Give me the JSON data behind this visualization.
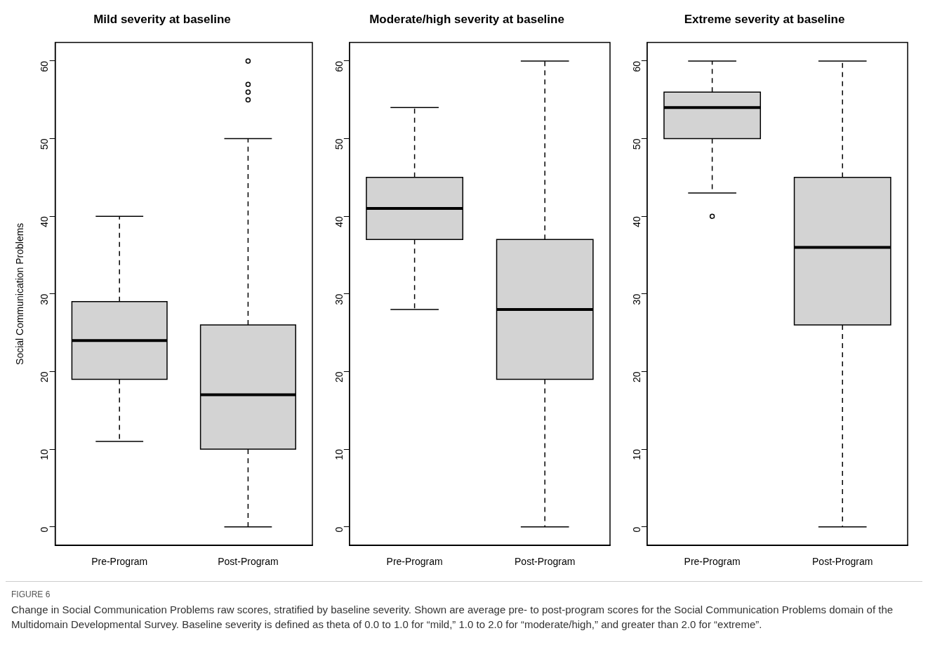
{
  "chart_data": [
    {
      "type": "box",
      "title": "Mild severity at baseline",
      "ylabel": "Social Communication Problems",
      "categories": [
        "Pre-Program",
        "Post-Program"
      ],
      "boxes": [
        {
          "low": 11,
          "q1": 19,
          "median": 24,
          "q3": 29,
          "high": 40
        },
        {
          "low": 0,
          "q1": 10,
          "median": 17,
          "q3": 26,
          "high": 50,
          "outliers": [
            55,
            56,
            57,
            60
          ]
        }
      ],
      "color": "#d3d3d3",
      "ylim": [
        -2.4,
        62.4
      ],
      "yticks": [
        0,
        10,
        20,
        30,
        40,
        50,
        60
      ],
      "grid": false,
      "annotations": [
        "FIGURE 6",
        "Change in Social Communication Problems raw scores, stratified by baseline severity. Shown are average pre- to post-program scores for the Social Communication Problems domain of the Multidomain Developmental Survey. Baseline severity is defined as theta of 0.0 to 1.0 for “mild,” 1.0 to 2.0 for “moderate/high,” and greater than 2.0 for “extreme”."
      ]
    },
    {
      "type": "box",
      "title": "Moderate/high severity at baseline",
      "categories": [
        "Pre-Program",
        "Post-Program"
      ],
      "boxes": [
        {
          "low": 28,
          "q1": 37,
          "median": 41,
          "q3": 45,
          "high": 54
        },
        {
          "low": 0,
          "q1": 19,
          "median": 28,
          "q3": 37,
          "high": 60
        }
      ],
      "color": "#d3d3d3",
      "ylim": [
        -2.4,
        62.4
      ],
      "yticks": [
        0,
        10,
        20,
        30,
        40,
        50,
        60
      ],
      "grid": false
    },
    {
      "type": "box",
      "title": "Extreme severity at baseline",
      "categories": [
        "Pre-Program",
        "Post-Program"
      ],
      "boxes": [
        {
          "low": 43,
          "q1": 50,
          "median": 54,
          "q3": 56,
          "high": 60,
          "outliers": [
            40
          ]
        },
        {
          "low": 0,
          "q1": 26,
          "median": 36,
          "q3": 45,
          "high": 60
        }
      ],
      "color": "#d3d3d3",
      "ylim": [
        -2.4,
        62.4
      ],
      "yticks": [
        0,
        10,
        20,
        30,
        40,
        50,
        60
      ],
      "grid": false
    }
  ]
}
